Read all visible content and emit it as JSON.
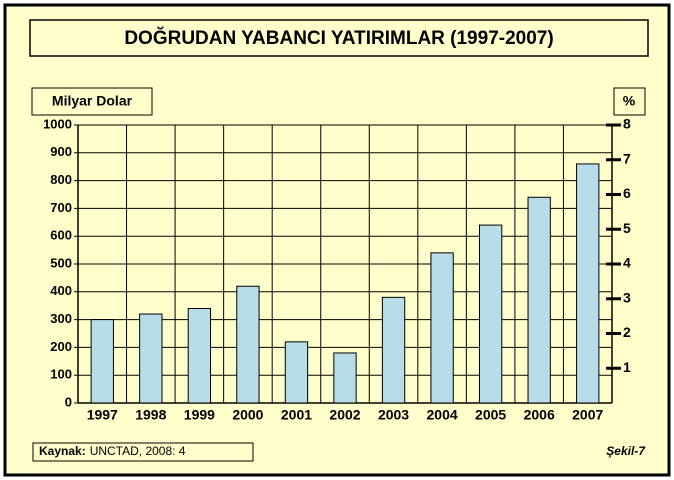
{
  "chart_data": {
    "type": "bar",
    "title": "DOĞRUDAN YABANCI YATIRIMLAR (1997-2007)",
    "y_label": "Milyar Dolar",
    "y2_label": "%",
    "categories": [
      "1997",
      "1998",
      "1999",
      "2000",
      "2001",
      "2002",
      "2003",
      "2004",
      "2005",
      "2006",
      "2007"
    ],
    "values": [
      300,
      320,
      340,
      420,
      220,
      180,
      380,
      540,
      640,
      740,
      860
    ],
    "color": "#b7dde8",
    "ylim": [
      0,
      1000
    ],
    "yticks": [
      0,
      100,
      200,
      300,
      400,
      500,
      600,
      700,
      800,
      900,
      1000
    ],
    "y2lim": [
      0,
      8
    ],
    "y2ticks": [
      1,
      2,
      3,
      4,
      5,
      6,
      7,
      8
    ],
    "grid": true,
    "source_label": "Kaynak:",
    "source": "UNCTAD, 2008: 4",
    "figure_label": "Şekil-7"
  }
}
